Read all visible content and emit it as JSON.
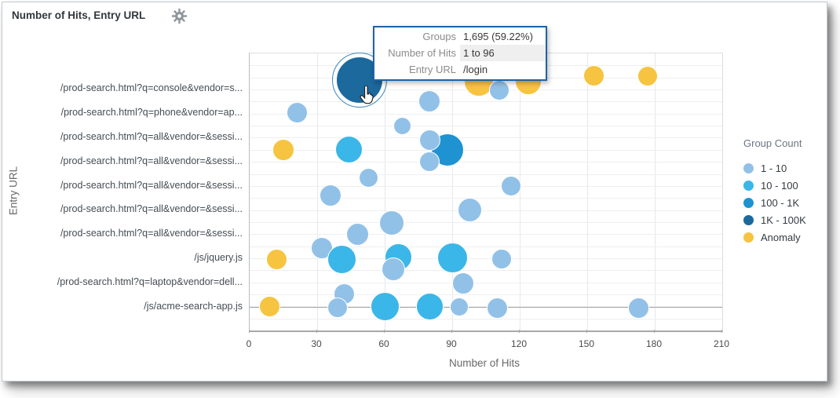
{
  "panel": {
    "title": "Number of Hits, Entry URL"
  },
  "chart_data": {
    "type": "scatter",
    "subtype": "bubble",
    "title": "Number of Hits, Entry URL",
    "xlabel": "Number of Hits",
    "ylabel": "Entry URL",
    "xlim": [
      0,
      210
    ],
    "xticks": [
      "0",
      "30",
      "60",
      "90",
      "120",
      "150",
      "180",
      "210"
    ],
    "grid": "on",
    "categories": [
      "/prod-search.html?q=console&vendor=s...",
      "/prod-search.html?q=phone&vendor=ap...",
      "/prod-search.html?q=all&vendor=&sessi...",
      "/prod-search.html?q=all&vendor=&sessi...",
      "/prod-search.html?q=all&vendor=&sessi...",
      "/prod-search.html?q=all&vendor=&sessi...",
      "/prod-search.html?q=all&vendor=&sessi...",
      "/js/jquery.js",
      "/prod-search.html?q=laptop&vendor=dell...",
      "/js/acme-search-app.js"
    ],
    "legend": {
      "title": "Group Count",
      "position": "right",
      "items": [
        {
          "label": "1 - 10",
          "color": "#92c1e8"
        },
        {
          "label": "10 - 100",
          "color": "#3bb6e8"
        },
        {
          "label": "100 - 1K",
          "color": "#1f93d1"
        },
        {
          "label": "1K - 100K",
          "color": "#1c699e"
        },
        {
          "label": "Anomaly",
          "color": "#f6c440"
        }
      ]
    },
    "bubbles": [
      {
        "hits": 49,
        "y": 0.096,
        "r": 30,
        "bucket": "1K - 100K",
        "category": "/login",
        "hovered": true
      },
      {
        "hits": 102,
        "y": 0.102,
        "r": 19,
        "bucket": "Anomaly",
        "category": ""
      },
      {
        "hits": 124,
        "y": 0.102,
        "r": 17,
        "bucket": "Anomaly",
        "category": ""
      },
      {
        "hits": 111,
        "y": 0.133,
        "r": 13,
        "bucket": "1 - 10",
        "category": "/prod-search.html?q=console&vendor=s..."
      },
      {
        "hits": 153,
        "y": 0.082,
        "r": 13.5,
        "bucket": "Anomaly",
        "category": ""
      },
      {
        "hits": 177,
        "y": 0.082,
        "r": 13,
        "bucket": "Anomaly",
        "category": ""
      },
      {
        "hits": 21,
        "y": 0.215,
        "r": 13.5,
        "bucket": "1 - 10",
        "category": "/prod-search.html?q=phone&vendor=ap..."
      },
      {
        "hits": 80,
        "y": 0.173,
        "r": 14,
        "bucket": "1 - 10",
        "category": ""
      },
      {
        "hits": 68,
        "y": 0.261,
        "r": 11.5,
        "bucket": "1 - 10",
        "category": ""
      },
      {
        "hits": 15,
        "y": 0.348,
        "r": 14,
        "bucket": "Anomaly",
        "category": ""
      },
      {
        "hits": 44,
        "y": 0.348,
        "r": 17.5,
        "bucket": "10 - 100",
        "category": ""
      },
      {
        "hits": 88,
        "y": 0.348,
        "r": 21,
        "bucket": "100 - 1K",
        "category": ""
      },
      {
        "hits": 80,
        "y": 0.314,
        "r": 13.5,
        "bucket": "1 - 10",
        "category": "/prod-search.html?q=all&vendor=&sessi..."
      },
      {
        "hits": 80,
        "y": 0.391,
        "r": 13,
        "bucket": "1 - 10",
        "category": "/prod-search.html?q=all&vendor=&sessi..."
      },
      {
        "hits": 53,
        "y": 0.448,
        "r": 12.5,
        "bucket": "1 - 10",
        "category": ""
      },
      {
        "hits": 116,
        "y": 0.479,
        "r": 13,
        "bucket": "1 - 10",
        "category": "/prod-search.html?q=all&vendor=&sessi..."
      },
      {
        "hits": 36,
        "y": 0.513,
        "r": 14,
        "bucket": "1 - 10",
        "category": ""
      },
      {
        "hits": 98,
        "y": 0.564,
        "r": 15.5,
        "bucket": "1 - 10",
        "category": "/prod-search.html?q=all&vendor=&sessi..."
      },
      {
        "hits": 63,
        "y": 0.612,
        "r": 16,
        "bucket": "1 - 10",
        "category": ""
      },
      {
        "hits": 48,
        "y": 0.654,
        "r": 14.5,
        "bucket": "1 - 10",
        "category": "/prod-search.html?q=all&vendor=&sessi..."
      },
      {
        "hits": 32,
        "y": 0.703,
        "r": 14,
        "bucket": "1 - 10",
        "category": ""
      },
      {
        "hits": 12,
        "y": 0.745,
        "r": 13.5,
        "bucket": "Anomaly",
        "category": "/js/jquery.js"
      },
      {
        "hits": 41,
        "y": 0.745,
        "r": 18.5,
        "bucket": "10 - 100",
        "category": "/js/jquery.js"
      },
      {
        "hits": 66,
        "y": 0.734,
        "r": 17.5,
        "bucket": "10 - 100",
        "category": "/js/jquery.js"
      },
      {
        "hits": 90,
        "y": 0.739,
        "r": 19.5,
        "bucket": "10 - 100",
        "category": "/js/jquery.js"
      },
      {
        "hits": 112,
        "y": 0.742,
        "r": 13,
        "bucket": "1 - 10",
        "category": "/js/jquery.js"
      },
      {
        "hits": 64,
        "y": 0.779,
        "r": 15,
        "bucket": "1 - 10",
        "category": ""
      },
      {
        "hits": 95,
        "y": 0.83,
        "r": 14,
        "bucket": "1 - 10",
        "category": "/prod-search.html?q=laptop&vendor=dell..."
      },
      {
        "hits": 42,
        "y": 0.867,
        "r": 13.5,
        "bucket": "1 - 10",
        "category": ""
      },
      {
        "hits": 9,
        "y": 0.915,
        "r": 13.5,
        "bucket": "Anomaly",
        "category": "/js/acme-search-app.js"
      },
      {
        "hits": 39,
        "y": 0.918,
        "r": 13,
        "bucket": "1 - 10",
        "category": "/js/acme-search-app.js"
      },
      {
        "hits": 60,
        "y": 0.915,
        "r": 18.5,
        "bucket": "10 - 100",
        "category": "/js/acme-search-app.js"
      },
      {
        "hits": 80,
        "y": 0.915,
        "r": 17.5,
        "bucket": "10 - 100",
        "category": "/js/acme-search-app.js"
      },
      {
        "hits": 93,
        "y": 0.915,
        "r": 12,
        "bucket": "1 - 10",
        "category": "/js/acme-search-app.js"
      },
      {
        "hits": 110,
        "y": 0.918,
        "r": 13.5,
        "bucket": "1 - 10",
        "category": "/js/acme-search-app.js"
      },
      {
        "hits": 173,
        "y": 0.918,
        "r": 13.5,
        "bucket": "1 - 10",
        "category": "/js/acme-search-app.js"
      }
    ]
  },
  "tooltip": {
    "rows": [
      {
        "label": "Groups",
        "value": "1,695 (59.22%)"
      },
      {
        "label": "Number of Hits",
        "value": "1 to 96"
      },
      {
        "label": "Entry URL",
        "value": "/login"
      }
    ]
  }
}
